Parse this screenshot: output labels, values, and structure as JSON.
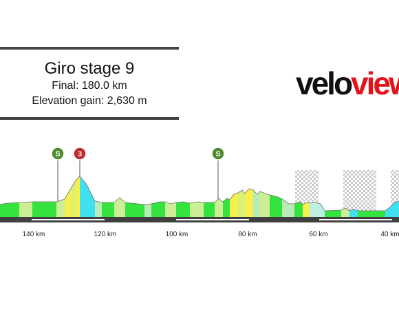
{
  "stage": {
    "title": "Giro stage 9",
    "final": "Final: 180.0 km",
    "elevation": "Elevation gain: 2,630 m"
  },
  "logo": {
    "part1": "velo",
    "part2": "view"
  },
  "colors": {
    "logo_dark": "#111111",
    "logo_red": "#e1141e",
    "sprint": "#4e8a2e",
    "kom": "#c0282c"
  },
  "km_ticks": [
    "140 km",
    "120 km",
    "100 km",
    "80 km",
    "60 km",
    "40 km"
  ],
  "markers": [
    {
      "type": "sprint",
      "label": "S",
      "km_to_go": 147
    },
    {
      "type": "kom",
      "label": "3",
      "km_to_go": 137
    },
    {
      "type": "sprint",
      "label": "S",
      "km_to_go": 89
    }
  ]
}
